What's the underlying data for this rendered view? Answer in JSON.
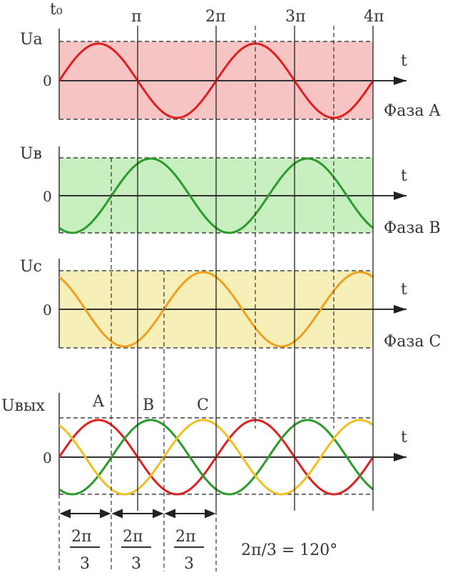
{
  "diagram": {
    "top_labels": {
      "t0": "t₀",
      "pi": "π",
      "two_pi": "2π",
      "three_pi": "3π",
      "four_pi": "4π"
    },
    "panels": [
      {
        "id": "a",
        "y_label": "Ua",
        "zero_label": "0",
        "t_label": "t",
        "phase_label": "Фаза A",
        "band_color": "#f7c4c4",
        "wave_color": "#e02020",
        "phase_offset_deg": 0
      },
      {
        "id": "b",
        "y_label": "Uв",
        "zero_label": "0",
        "t_label": "t",
        "phase_label": "Фаза B",
        "band_color": "#c8efc0",
        "wave_color": "#2c9a2c",
        "phase_offset_deg": -120
      },
      {
        "id": "c",
        "y_label": "Uc",
        "zero_label": "0",
        "t_label": "t",
        "phase_label": "Фаза C",
        "band_color": "#f6f0b8",
        "wave_color": "#f0a020",
        "phase_offset_deg": 120
      }
    ],
    "combined": {
      "y_label": "Uвых",
      "zero_label": "0",
      "t_label": "t",
      "peak_labels": [
        "A",
        "B",
        "C"
      ]
    },
    "fractions": [
      {
        "num": "2π",
        "den": "3"
      },
      {
        "num": "2π",
        "den": "3"
      },
      {
        "num": "2π",
        "den": "3"
      }
    ],
    "equation": "2π/3 = 120°"
  }
}
